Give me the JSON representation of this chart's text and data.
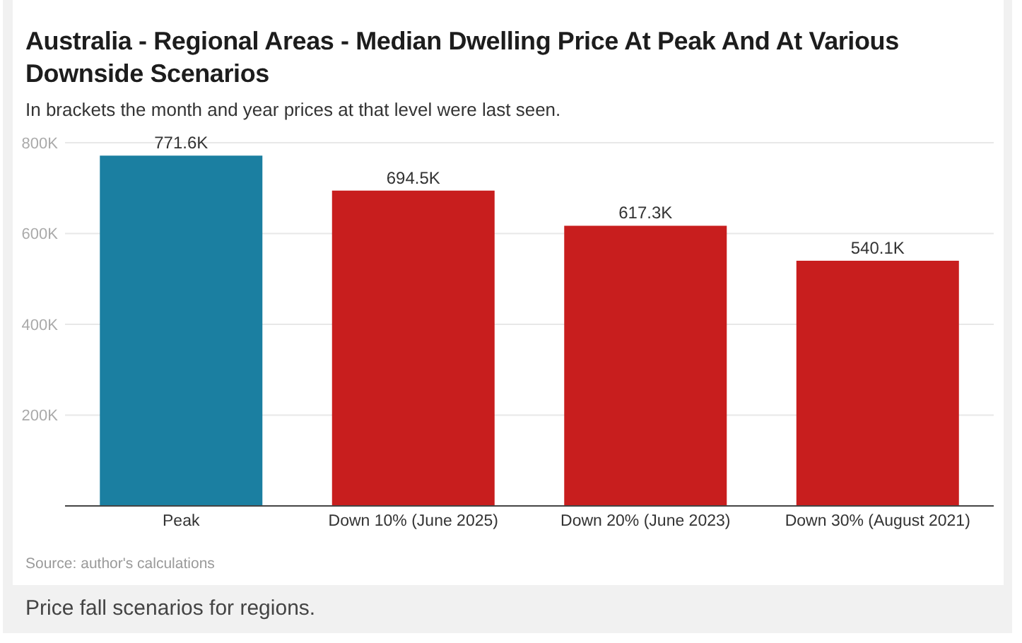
{
  "chart_data": {
    "type": "bar",
    "title": "Australia - Regional Areas - Median Dwelling Price At Peak And At Various Downside Scenarios",
    "subtitle": "In brackets the month and year prices at that level were last seen.",
    "categories": [
      "Peak",
      "Down 10% (June 2025)",
      "Down 20% (June 2023)",
      "Down 30% (August 2021)"
    ],
    "values": [
      771600,
      694500,
      617300,
      540100
    ],
    "colors": [
      "#1b7fa1",
      "#c81e1e",
      "#c81e1e",
      "#c81e1e"
    ],
    "value_labels": [
      "771.6K",
      "694.5K",
      "617.3K",
      "540.1K"
    ],
    "ylim": [
      0,
      800000
    ],
    "yticks": [
      {
        "value": 200000,
        "label": "200K"
      },
      {
        "value": 400000,
        "label": "400K"
      },
      {
        "value": 600000,
        "label": "600K"
      },
      {
        "value": 800000,
        "label": "800K"
      }
    ],
    "grid": "y",
    "annotations": [
      "Source: author's calculations",
      "Price fall scenarios for regions."
    ]
  }
}
